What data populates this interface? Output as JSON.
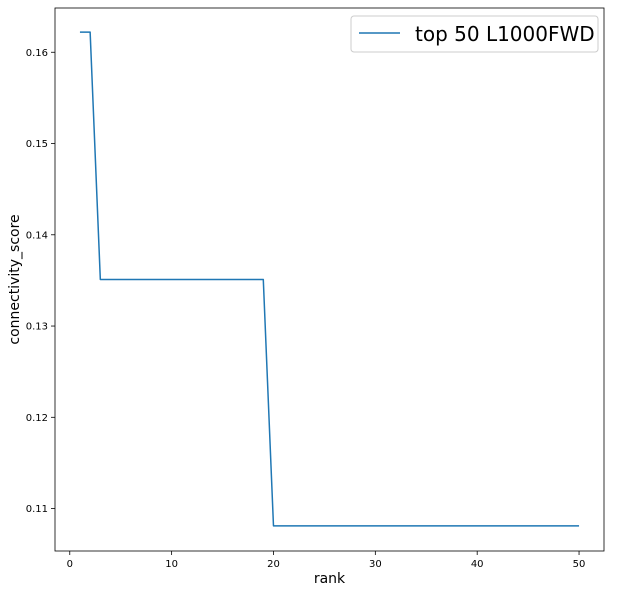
{
  "chart_data": {
    "type": "line",
    "title": "",
    "xlabel": "rank",
    "ylabel": "connectivity_score",
    "xlim": [
      -1.45,
      52.45
    ],
    "ylim": [
      0.10535,
      0.16485
    ],
    "xticks": [
      0,
      10,
      20,
      30,
      40,
      50
    ],
    "yticks": [
      0.11,
      0.12,
      0.13,
      0.14,
      0.15,
      0.16
    ],
    "xtick_labels": [
      "0",
      "10",
      "20",
      "30",
      "40",
      "50"
    ],
    "ytick_labels": [
      "0.11",
      "0.12",
      "0.13",
      "0.14",
      "0.15",
      "0.16"
    ],
    "grid": false,
    "legend": {
      "position": "top-right",
      "entries": [
        "top 50 L1000FWD"
      ]
    },
    "series": [
      {
        "name": "top 50 L1000FWD",
        "color": "#1f77b4",
        "x": [
          1,
          2,
          3,
          4,
          5,
          6,
          7,
          8,
          9,
          10,
          11,
          12,
          13,
          14,
          15,
          16,
          17,
          18,
          19,
          20,
          21,
          22,
          23,
          24,
          25,
          26,
          27,
          28,
          29,
          30,
          31,
          32,
          33,
          34,
          35,
          36,
          37,
          38,
          39,
          40,
          41,
          42,
          43,
          44,
          45,
          46,
          47,
          48,
          49,
          50
        ],
        "values": [
          0.1622,
          0.1622,
          0.1351,
          0.1351,
          0.1351,
          0.1351,
          0.1351,
          0.1351,
          0.1351,
          0.1351,
          0.1351,
          0.1351,
          0.1351,
          0.1351,
          0.1351,
          0.1351,
          0.1351,
          0.1351,
          0.1351,
          0.1081,
          0.1081,
          0.1081,
          0.1081,
          0.1081,
          0.1081,
          0.1081,
          0.1081,
          0.1081,
          0.1081,
          0.1081,
          0.1081,
          0.1081,
          0.1081,
          0.1081,
          0.1081,
          0.1081,
          0.1081,
          0.1081,
          0.1081,
          0.1081,
          0.1081,
          0.1081,
          0.1081,
          0.1081,
          0.1081,
          0.1081,
          0.1081,
          0.1081,
          0.1081,
          0.1081
        ]
      }
    ]
  }
}
